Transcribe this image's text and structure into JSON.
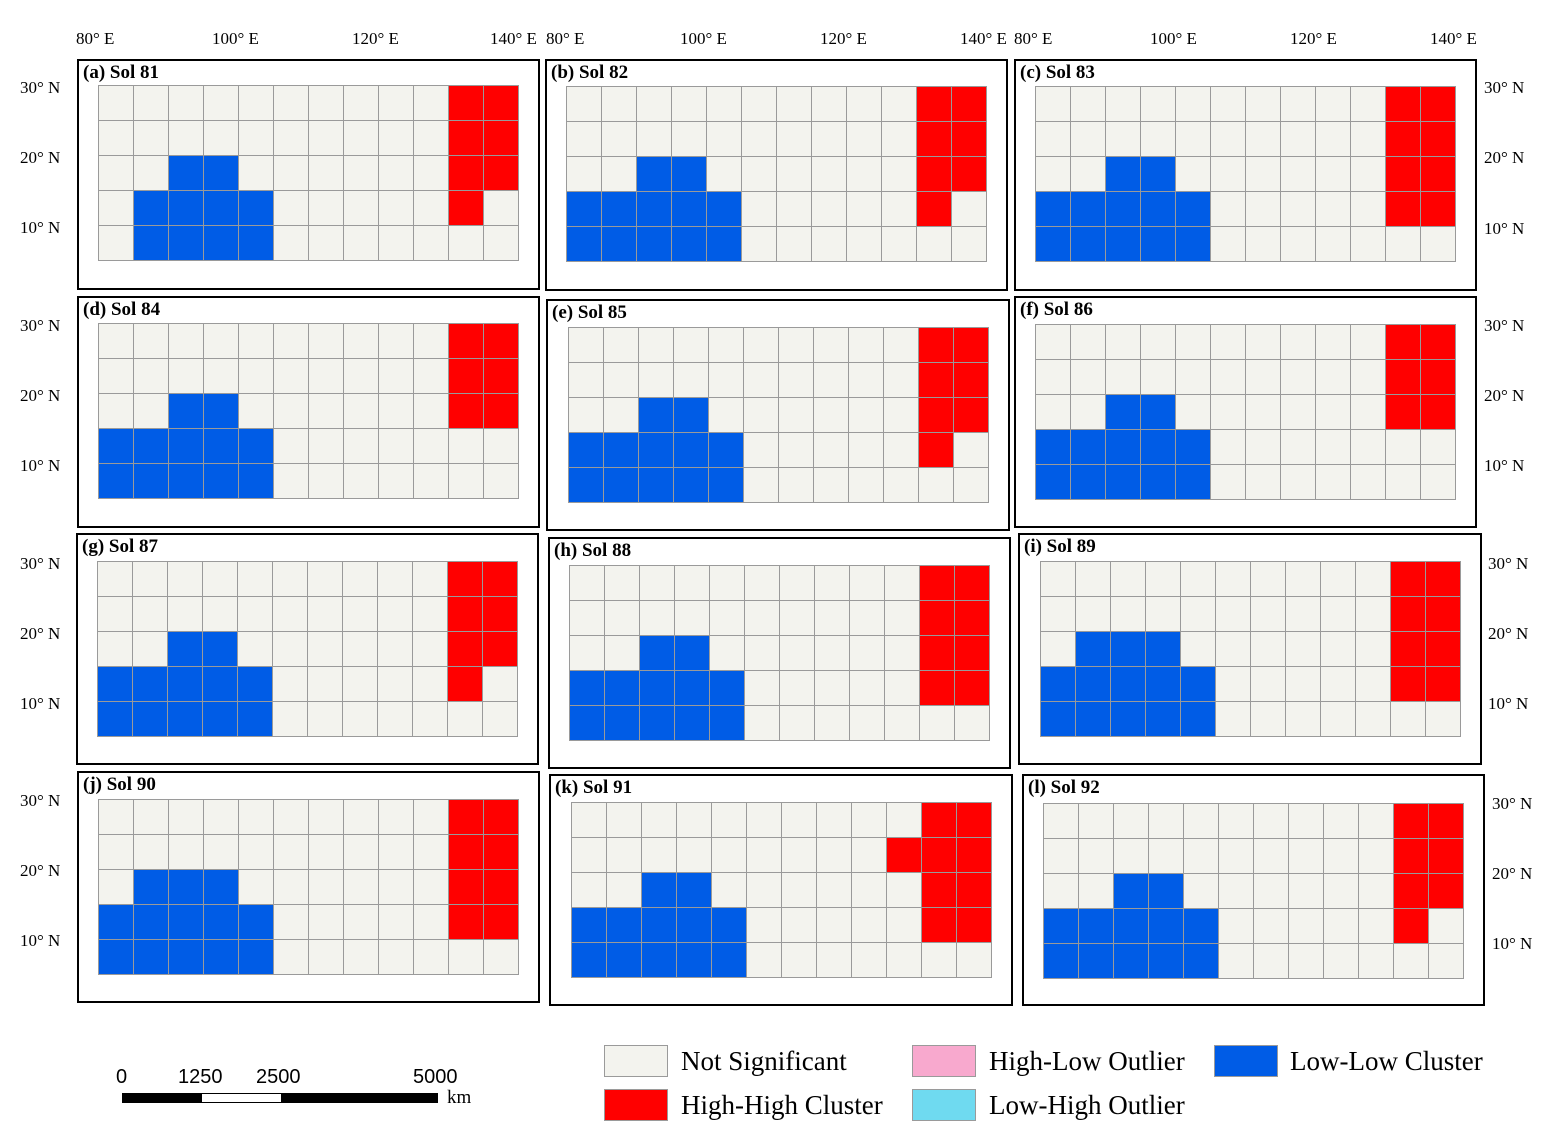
{
  "colors": {
    "not_significant": "#f3f3ee",
    "high_high": "#ff0000",
    "high_low": "#f8a9ce",
    "low_high": "#6fdaf0",
    "low_low": "#005ce6"
  },
  "axis_labels": {
    "longitude": [
      "80° E",
      "100° E",
      "120° E",
      "140° E"
    ],
    "latitude": [
      "30° N",
      "20° N",
      "10° N"
    ]
  },
  "panels": [
    {
      "title": "(a) Sol 81",
      "grid": [
        "NNNNNNNNNNHH",
        "NNNNNNNNNNHH",
        "NNLLNNNNNNHH",
        "NLLLLNNNNNHN",
        "NLLLLNNNNNNN"
      ]
    },
    {
      "title": "(b) Sol 82",
      "grid": [
        "NNNNNNNNNNHH",
        "NNNNNNNNNNHH",
        "NNLLNNNNNNHH",
        "LLLLLNNNNNHN",
        "LLLLLNNNNNNN"
      ]
    },
    {
      "title": "(c) Sol 83",
      "grid": [
        "NNNNNNNNNNHH",
        "NNNNNNNNNNHH",
        "NNLLNNNNNNHH",
        "LLLLLNNNNNHH",
        "LLLLLNNNNNNN"
      ]
    },
    {
      "title": "(d) Sol 84",
      "grid": [
        "NNNNNNNNNNHH",
        "NNNNNNNNNNHH",
        "NNLLNNNNNNHH",
        "LLLLLNNNNNNN",
        "LLLLLNNNNNNN"
      ]
    },
    {
      "title": "(e) Sol 85",
      "grid": [
        "NNNNNNNNNNHH",
        "NNNNNNNNNNHH",
        "NNLLNNNNNNHH",
        "LLLLLNNNNNHN",
        "LLLLLNNNNNNN"
      ]
    },
    {
      "title": "(f) Sol 86",
      "grid": [
        "NNNNNNNNNNHH",
        "NNNNNNNNNNHH",
        "NNLLNNNNNNHH",
        "LLLLLNNNNNNN",
        "LLLLLNNNNNNN"
      ]
    },
    {
      "title": "(g) Sol 87",
      "grid": [
        "NNNNNNNNNNHH",
        "NNNNNNNNNNHH",
        "NNLLNNNNNNHH",
        "LLLLLNNNNNHN",
        "LLLLLNNNNNNN"
      ]
    },
    {
      "title": "(h) Sol 88",
      "grid": [
        "NNNNNNNNNNHH",
        "NNNNNNNNNNHH",
        "NNLLNNNNNNHH",
        "LLLLLNNNNNHH",
        "LLLLLNNNNNNN"
      ]
    },
    {
      "title": "(i) Sol 89",
      "grid": [
        "NNNNNNNNNNHH",
        "NNNNNNNNNNHH",
        "NLLLNNNNNNHH",
        "LLLLLNNNNNHH",
        "LLLLLNNNNNNN"
      ]
    },
    {
      "title": "(j) Sol 90",
      "grid": [
        "NNNNNNNNNNHH",
        "NNNNNNNNNNHH",
        "NLLLNNNNNNHH",
        "LLLLLNNNNNHH",
        "LLLLLNNNNNNN"
      ]
    },
    {
      "title": "(k) Sol 91",
      "grid": [
        "NNNNNNNNNNHH",
        "NNNNNNNNNHHH",
        "NNLLNNNNNNHH",
        "LLLLLNNNNNHH",
        "LLLLLNNNNNNN"
      ]
    },
    {
      "title": "(l) Sol 92",
      "grid": [
        "NNNNNNNNNNHH",
        "NNNNNNNNNNHH",
        "NNLLNNNNNNHH",
        "LLLLLNNNNNHN",
        "LLLLLNNNNNNN"
      ]
    }
  ],
  "legend": {
    "items": [
      {
        "key": "N",
        "label": "Not Significant"
      },
      {
        "key": "H",
        "label": "High-High Cluster"
      },
      {
        "key": "HL",
        "label": "High-Low Outlier"
      },
      {
        "key": "LH",
        "label": "Low-High Outlier"
      },
      {
        "key": "L",
        "label": "Low-Low Cluster"
      }
    ]
  },
  "scale_bar": {
    "ticks": [
      "0",
      "1250",
      "2500",
      "5000"
    ],
    "unit": "km"
  }
}
